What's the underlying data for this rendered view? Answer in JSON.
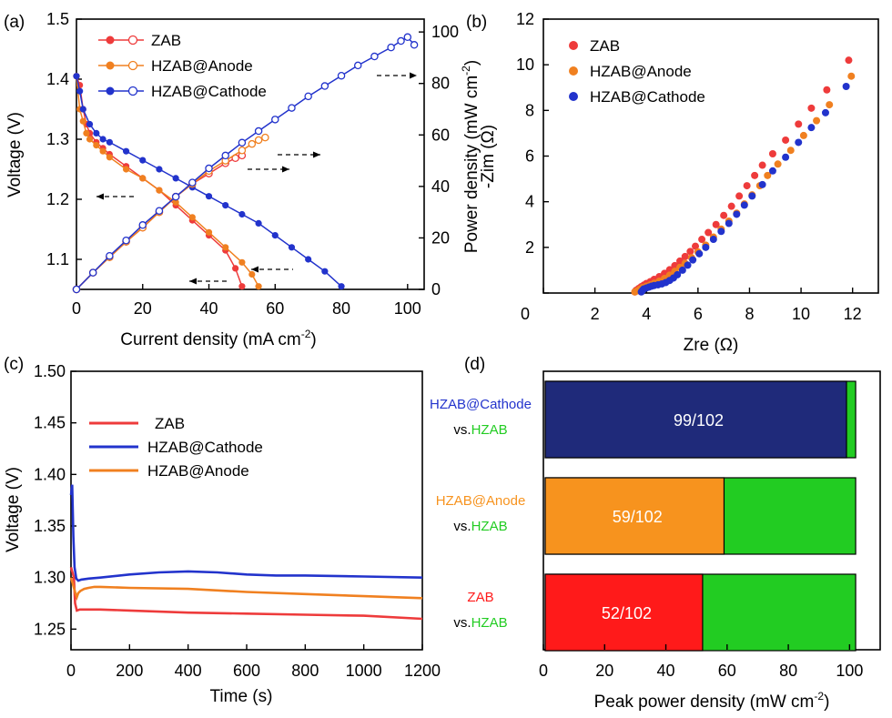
{
  "colors": {
    "zab": "#ee3b3b",
    "anode": "#f08020",
    "cathode": "#2233cc",
    "navy": "#1f2a7a",
    "green": "#22cc22",
    "red": "#ff1a1a",
    "orange": "#f7931e",
    "axis": "#000000"
  },
  "chart_data": [
    {
      "panel": "(a)",
      "type": "line",
      "xlabel": "Current density (mA cm",
      "xlabel_sup": "-2",
      "xlabel_end": ")",
      "ylabel": "Voltage (V)",
      "y2label": "Power density (mW cm",
      "y2label_sup": "-2",
      "y2label_end": ")",
      "xlim": [
        0,
        105
      ],
      "ylim": [
        1.05,
        1.5
      ],
      "y2lim": [
        0,
        105
      ],
      "xticks": [
        "0",
        "20",
        "40",
        "60",
        "80",
        "100"
      ],
      "yticks": [
        "1.1",
        "1.2",
        "1.3",
        "1.4",
        "1.5"
      ],
      "y2ticks": [
        "0",
        "20",
        "40",
        "60",
        "80",
        "100"
      ],
      "legend": [
        "ZAB",
        "HZAB@Anode",
        "HZAB@Cathode"
      ],
      "series": [
        {
          "name": "ZAB",
          "role": "voltage",
          "x": [
            0,
            1,
            2,
            3,
            4,
            6,
            8,
            10,
            15,
            20,
            25,
            30,
            35,
            40,
            45,
            48,
            50
          ],
          "y": [
            1.405,
            1.39,
            1.35,
            1.325,
            1.31,
            1.295,
            1.285,
            1.275,
            1.255,
            1.235,
            1.215,
            1.19,
            1.165,
            1.14,
            1.115,
            1.085,
            1.055
          ]
        },
        {
          "name": "HZAB@Anode",
          "role": "voltage",
          "x": [
            0,
            1,
            2,
            3,
            4,
            6,
            8,
            10,
            15,
            20,
            25,
            30,
            35,
            40,
            45,
            50,
            53,
            55
          ],
          "y": [
            1.405,
            1.35,
            1.33,
            1.31,
            1.3,
            1.29,
            1.28,
            1.27,
            1.25,
            1.235,
            1.215,
            1.195,
            1.17,
            1.145,
            1.12,
            1.095,
            1.075,
            1.055
          ]
        },
        {
          "name": "HZAB@Cathode",
          "role": "voltage",
          "x": [
            0,
            1,
            2,
            4,
            6,
            8,
            10,
            15,
            20,
            25,
            30,
            35,
            40,
            45,
            50,
            55,
            60,
            65,
            70,
            75,
            80
          ],
          "y": [
            1.405,
            1.38,
            1.35,
            1.325,
            1.31,
            1.3,
            1.295,
            1.28,
            1.265,
            1.25,
            1.235,
            1.22,
            1.205,
            1.19,
            1.175,
            1.16,
            1.14,
            1.12,
            1.1,
            1.08,
            1.055
          ]
        },
        {
          "name": "ZAB",
          "role": "power",
          "x": [
            0,
            5,
            10,
            15,
            20,
            25,
            30,
            35,
            40,
            45,
            48,
            50
          ],
          "y": [
            0,
            6.5,
            12.5,
            18.5,
            24,
            30,
            36,
            41,
            45,
            49,
            51,
            52
          ]
        },
        {
          "name": "HZAB@Anode",
          "role": "power",
          "x": [
            0,
            5,
            10,
            15,
            20,
            25,
            30,
            35,
            40,
            45,
            50,
            53,
            55,
            57
          ],
          "y": [
            0,
            6.5,
            12.5,
            18.5,
            24,
            30,
            36,
            41,
            46,
            50,
            54,
            56.5,
            58,
            59
          ]
        },
        {
          "name": "HZAB@Cathode",
          "role": "power",
          "x": [
            0,
            5,
            10,
            15,
            20,
            25,
            30,
            35,
            40,
            45,
            50,
            55,
            60,
            65,
            70,
            75,
            80,
            85,
            90,
            95,
            98,
            100,
            102
          ],
          "y": [
            0,
            6.5,
            13,
            19,
            25,
            30.5,
            36,
            41.5,
            47,
            52,
            57,
            61.5,
            66,
            70.5,
            75,
            79,
            83,
            87,
            90.5,
            94,
            96.5,
            98,
            95
          ]
        }
      ],
      "arrows": "dashed arrows: falling curves point to left (Voltage) axis, rising curves point to right (Power density) axis"
    },
    {
      "panel": "(b)",
      "type": "scatter",
      "xlabel": "Zre (Ω)",
      "ylabel": "-Zim (Ω)",
      "xlim": [
        0,
        13
      ],
      "ylim": [
        0,
        12
      ],
      "xticks": [
        "0",
        "2",
        "4",
        "6",
        "8",
        "10",
        "12"
      ],
      "yticks": [
        "0",
        "2",
        "4",
        "6",
        "8",
        "10",
        "12"
      ],
      "legend": [
        "ZAB",
        "HZAB@Anode",
        "HZAB@Cathode"
      ],
      "series": [
        {
          "name": "ZAB",
          "x": [
            3.55,
            3.6,
            3.7,
            3.8,
            3.9,
            4.0,
            4.15,
            4.3,
            4.5,
            4.7,
            4.9,
            5.1,
            5.3,
            5.5,
            5.7,
            5.9,
            6.15,
            6.4,
            6.7,
            7.0,
            7.3,
            7.6,
            7.9,
            8.2,
            8.5,
            8.9,
            9.4,
            9.9,
            10.4,
            11.0,
            11.85
          ],
          "y": [
            0.05,
            0.12,
            0.2,
            0.28,
            0.35,
            0.42,
            0.5,
            0.6,
            0.72,
            0.86,
            1.02,
            1.2,
            1.4,
            1.6,
            1.82,
            2.05,
            2.35,
            2.65,
            3.0,
            3.4,
            3.8,
            4.25,
            4.7,
            5.15,
            5.6,
            6.1,
            6.7,
            7.4,
            8.1,
            8.9,
            10.2
          ]
        },
        {
          "name": "HZAB@Anode",
          "x": [
            3.55,
            3.65,
            3.75,
            3.85,
            4.0,
            4.15,
            4.3,
            4.5,
            4.7,
            4.9,
            5.1,
            5.3,
            5.5,
            5.75,
            6.0,
            6.3,
            6.6,
            6.9,
            7.2,
            7.5,
            7.8,
            8.1,
            8.4,
            8.7,
            9.1,
            9.6,
            10.1,
            10.6,
            11.1,
            11.95
          ],
          "y": [
            0.05,
            0.1,
            0.17,
            0.24,
            0.3,
            0.36,
            0.43,
            0.52,
            0.64,
            0.78,
            0.95,
            1.12,
            1.3,
            1.55,
            1.8,
            2.1,
            2.45,
            2.8,
            3.15,
            3.5,
            3.9,
            4.3,
            4.7,
            5.15,
            5.65,
            6.25,
            6.9,
            7.55,
            8.25,
            9.5
          ]
        },
        {
          "name": "HZAB@Cathode",
          "x": [
            3.8,
            3.85,
            3.9,
            4.0,
            4.1,
            4.2,
            4.3,
            4.45,
            4.6,
            4.75,
            4.9,
            5.05,
            5.2,
            5.4,
            5.6,
            5.8,
            6.05,
            6.3,
            6.6,
            6.9,
            7.2,
            7.5,
            7.8,
            8.1,
            8.5,
            8.9,
            9.4,
            9.9,
            10.4,
            10.95,
            11.75
          ],
          "y": [
            0.05,
            0.12,
            0.18,
            0.22,
            0.26,
            0.3,
            0.33,
            0.36,
            0.4,
            0.46,
            0.55,
            0.66,
            0.8,
            1.0,
            1.22,
            1.45,
            1.72,
            2.0,
            2.35,
            2.7,
            3.05,
            3.45,
            3.85,
            4.25,
            4.75,
            5.35,
            5.95,
            6.6,
            7.25,
            7.9,
            9.05
          ]
        }
      ]
    },
    {
      "panel": "(c)",
      "type": "line",
      "xlabel": "Time (s)",
      "ylabel": "Voltage (V)",
      "xlim": [
        0,
        1200
      ],
      "ylim": [
        1.23,
        1.5
      ],
      "xticks": [
        "0",
        "200",
        "400",
        "600",
        "800",
        "1000",
        "1200"
      ],
      "yticks": [
        "1.25",
        "1.30",
        "1.35",
        "1.40",
        "1.45",
        "1.50"
      ],
      "legend": [
        "ZAB",
        "HZAB@Cathode",
        "HZAB@Anode"
      ],
      "series": [
        {
          "name": "ZAB",
          "x": [
            0,
            10,
            14,
            20,
            30,
            100,
            200,
            400,
            600,
            800,
            1000,
            1200
          ],
          "y": [
            1.31,
            1.3,
            1.275,
            1.268,
            1.269,
            1.269,
            1.268,
            1.266,
            1.265,
            1.264,
            1.263,
            1.26
          ]
        },
        {
          "name": "HZAB@Cathode",
          "x": [
            0,
            4,
            8,
            12,
            18,
            25,
            35,
            60,
            100,
            200,
            300,
            400,
            500,
            600,
            700,
            800,
            1000,
            1200
          ],
          "y": [
            1.38,
            1.39,
            1.34,
            1.31,
            1.299,
            1.297,
            1.298,
            1.299,
            1.3,
            1.303,
            1.305,
            1.306,
            1.305,
            1.303,
            1.302,
            1.302,
            1.301,
            1.3
          ]
        },
        {
          "name": "HZAB@Anode",
          "x": [
            0,
            10,
            15,
            20,
            25,
            32,
            45,
            60,
            80,
            100,
            200,
            400,
            600,
            800,
            1000,
            1200
          ],
          "y": [
            1.3,
            1.29,
            1.285,
            1.281,
            1.285,
            1.287,
            1.289,
            1.29,
            1.291,
            1.291,
            1.29,
            1.289,
            1.286,
            1.284,
            1.282,
            1.28
          ]
        }
      ]
    },
    {
      "panel": "(d)",
      "type": "bar",
      "xlabel": "Peak power density (mW cm",
      "xlabel_sup": "-2",
      "xlabel_end": ")",
      "xlim": [
        0,
        110
      ],
      "xticks": [
        "0",
        "20",
        "40",
        "60",
        "80",
        "100"
      ],
      "total": 102,
      "bars": [
        {
          "label": "HZAB@Cathode",
          "vs": "vs.",
          "ref": "HZAB",
          "value": 99,
          "text": "99/102"
        },
        {
          "label": "HZAB@Anode",
          "vs": "vs.",
          "ref": "HZAB",
          "value": 59,
          "text": "59/102"
        },
        {
          "label": "ZAB",
          "vs": "vs.",
          "ref": "HZAB",
          "value": 52,
          "text": "52/102"
        }
      ]
    }
  ]
}
